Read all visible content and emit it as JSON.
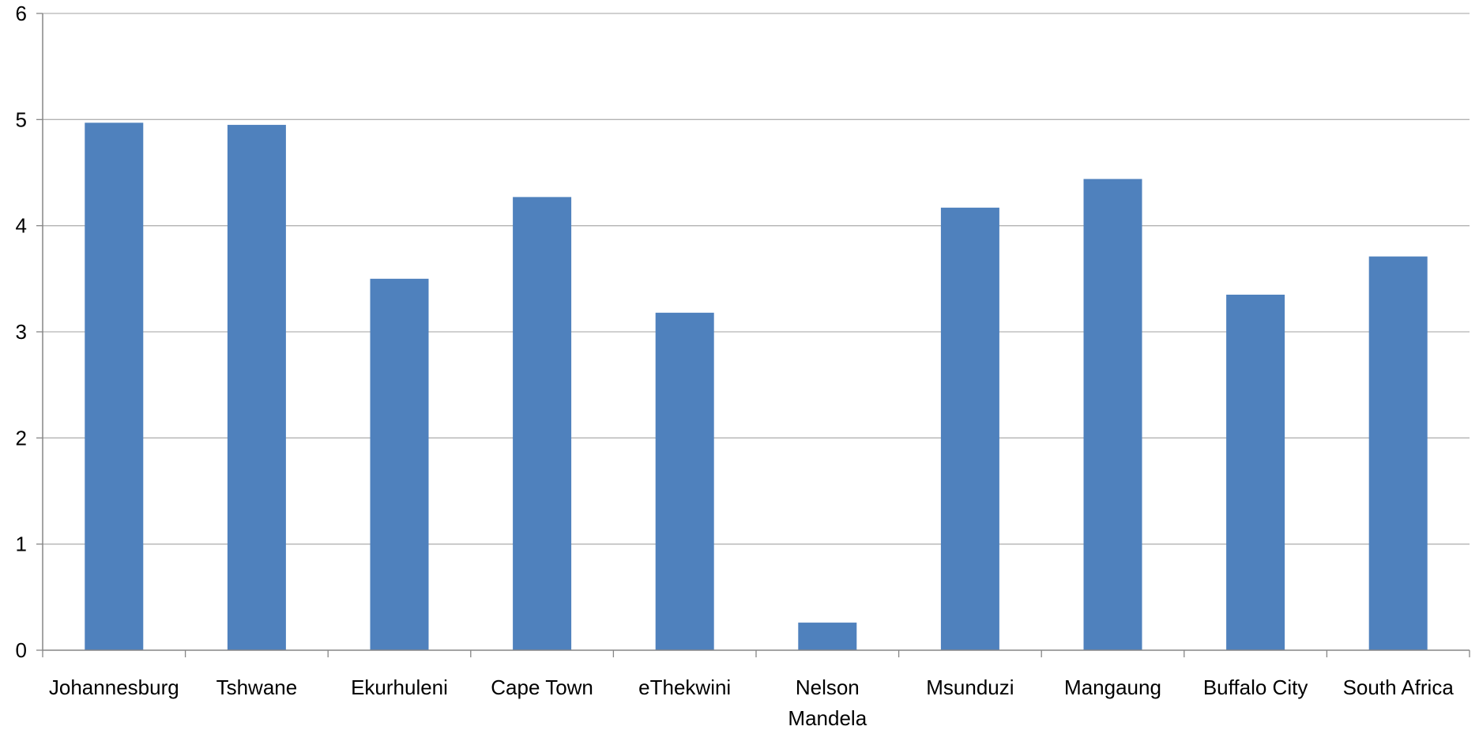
{
  "chart_data": {
    "type": "bar",
    "title": "",
    "xlabel": "",
    "ylabel": "",
    "ylim": [
      0,
      6
    ],
    "yticks": [
      0,
      1,
      2,
      3,
      4,
      5,
      6
    ],
    "grid": true,
    "legend": "none",
    "categories": [
      [
        "Johannesburg"
      ],
      [
        "Tshwane"
      ],
      [
        "Ekurhuleni"
      ],
      [
        "Cape Town"
      ],
      [
        "eThekwini"
      ],
      [
        "Nelson",
        "Mandela"
      ],
      [
        "Msunduzi"
      ],
      [
        "Mangaung"
      ],
      [
        "Buffalo City"
      ],
      [
        "South Africa"
      ]
    ],
    "values": [
      4.97,
      4.95,
      3.5,
      4.27,
      3.18,
      0.26,
      4.17,
      4.44,
      3.35,
      3.71
    ],
    "colors": {
      "bar": "#4f81bd",
      "grid": "#b3b3b3",
      "axis": "#868686"
    }
  }
}
